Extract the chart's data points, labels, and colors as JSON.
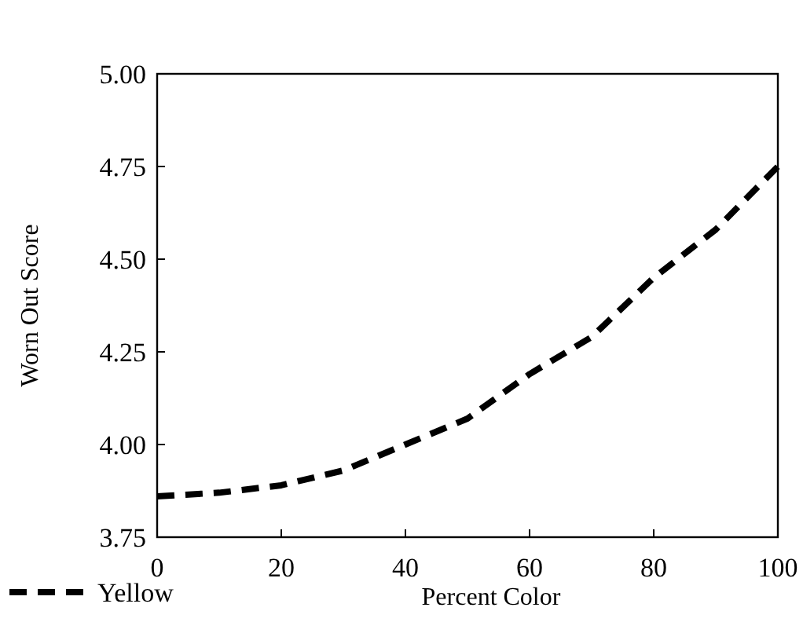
{
  "chart_data": {
    "type": "line",
    "xlabel": "Percent Color",
    "ylabel": "Worn Out Score",
    "x": [
      0,
      10,
      20,
      30,
      40,
      50,
      60,
      70,
      80,
      90,
      100
    ],
    "series": [
      {
        "name": "Yellow",
        "color": "#000000",
        "values": [
          3.86,
          3.87,
          3.89,
          3.93,
          4.0,
          4.07,
          4.19,
          4.29,
          4.45,
          4.58,
          4.75
        ]
      }
    ],
    "xlim": [
      0,
      100
    ],
    "xticks": [
      0,
      20,
      40,
      60,
      80,
      100
    ],
    "ylim": [
      3.75,
      5.0
    ],
    "yticks": [
      {
        "value": 3.75,
        "label": "3.75"
      },
      {
        "value": 4,
        "label": "4.00"
      },
      {
        "value": 4.25,
        "label": "4.25"
      },
      {
        "value": 4.5,
        "label": "4.50"
      },
      {
        "value": 4.75,
        "label": "4.75"
      },
      {
        "value": 5,
        "label": "5.00"
      }
    ],
    "grid": false,
    "legend": "bottom left",
    "marker": "none",
    "line_style": "dashed"
  }
}
